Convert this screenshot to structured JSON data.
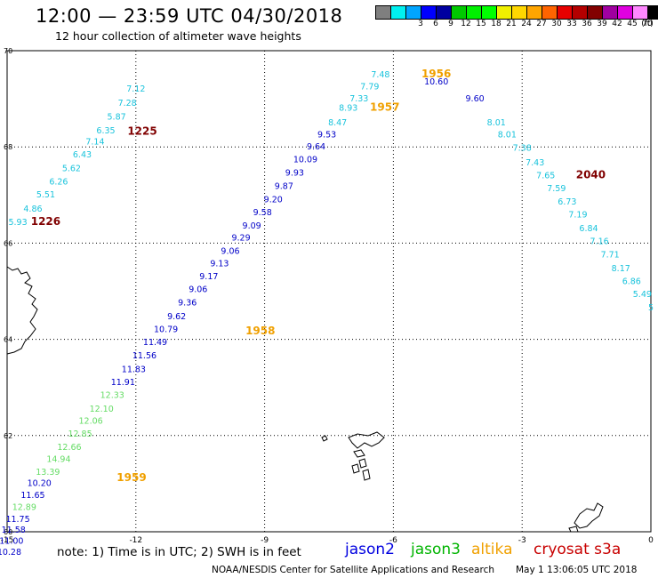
{
  "header": {
    "title": "12:00 — 23:59 UTC 04/30/2018",
    "subtitle": "12 hour collection of altimeter wave heights"
  },
  "colorbar": {
    "unit": "(ft)",
    "colors": [
      "#7f7f7f",
      "#00f0f0",
      "#00a5ff",
      "#0000ff",
      "#0000a0",
      "#00c800",
      "#00f000",
      "#00ff00",
      "#f0f000",
      "#ffd700",
      "#ffa500",
      "#ff6400",
      "#e60000",
      "#b40000",
      "#820000",
      "#a000a0",
      "#e000e0",
      "#ff88ff",
      "#000000"
    ],
    "labels": [
      "3",
      "6",
      "9",
      "12",
      "15",
      "18",
      "21",
      "24",
      "27",
      "30",
      "33",
      "36",
      "39",
      "42",
      "45",
      "70"
    ]
  },
  "map": {
    "lat_ticks": [
      "70",
      "68",
      "66",
      "64",
      "62",
      "60"
    ],
    "lon_ticks": [
      "-15",
      "-12",
      "-9",
      "-6",
      "-3",
      "0"
    ],
    "lat_range": [
      60,
      70
    ],
    "lon_range": [
      -15,
      0
    ]
  },
  "observations": [
    {
      "lon": -12.0,
      "lat": 69.15,
      "text": "7.12",
      "color": "#19c3dc"
    },
    {
      "lon": -12.2,
      "lat": 68.85,
      "text": "7.28",
      "color": "#19c3dc"
    },
    {
      "lon": -12.45,
      "lat": 68.57,
      "text": "5.87",
      "color": "#19c3dc"
    },
    {
      "lon": -12.7,
      "lat": 68.28,
      "text": "6.35",
      "color": "#19c3dc"
    },
    {
      "lon": -12.95,
      "lat": 68.05,
      "text": "7.14",
      "color": "#19c3dc"
    },
    {
      "lon": -13.25,
      "lat": 67.78,
      "text": "6.43",
      "color": "#19c3dc"
    },
    {
      "lon": -13.5,
      "lat": 67.5,
      "text": "5.62",
      "color": "#19c3dc"
    },
    {
      "lon": -13.8,
      "lat": 67.22,
      "text": "6.26",
      "color": "#19c3dc"
    },
    {
      "lon": -14.1,
      "lat": 66.95,
      "text": "5.51",
      "color": "#19c3dc"
    },
    {
      "lon": -14.4,
      "lat": 66.65,
      "text": "4.86",
      "color": "#19c3dc"
    },
    {
      "lon": -14.75,
      "lat": 66.38,
      "text": "5.93",
      "color": "#19c3dc"
    },
    {
      "lon": -11.85,
      "lat": 68.25,
      "text": "1225",
      "color": "#800000",
      "time": true
    },
    {
      "lon": -14.1,
      "lat": 66.38,
      "text": "1226",
      "color": "#800000",
      "time": true
    },
    {
      "lon": -6.3,
      "lat": 69.45,
      "text": "7.48",
      "color": "#19c3dc"
    },
    {
      "lon": -6.55,
      "lat": 69.2,
      "text": "7.79",
      "color": "#19c3dc"
    },
    {
      "lon": -6.8,
      "lat": 68.95,
      "text": "7.33",
      "color": "#19c3dc"
    },
    {
      "lon": -5.0,
      "lat": 69.3,
      "text": "10.60",
      "color": "#0000c8"
    },
    {
      "lon": -4.1,
      "lat": 68.95,
      "text": "9.60",
      "color": "#0000c8"
    },
    {
      "lon": -7.05,
      "lat": 68.75,
      "text": "8.93",
      "color": "#19c3dc"
    },
    {
      "lon": -7.3,
      "lat": 68.45,
      "text": "8.47",
      "color": "#19c3dc"
    },
    {
      "lon": -7.55,
      "lat": 68.2,
      "text": "9.53",
      "color": "#0000c8"
    },
    {
      "lon": -7.8,
      "lat": 67.95,
      "text": "9.64",
      "color": "#0000c8"
    },
    {
      "lon": -8.05,
      "lat": 67.68,
      "text": "10.09",
      "color": "#0000c8"
    },
    {
      "lon": -8.3,
      "lat": 67.4,
      "text": "9.93",
      "color": "#0000c8"
    },
    {
      "lon": -8.55,
      "lat": 67.13,
      "text": "9.87",
      "color": "#0000c8"
    },
    {
      "lon": -8.8,
      "lat": 66.85,
      "text": "9.20",
      "color": "#0000c8"
    },
    {
      "lon": -9.05,
      "lat": 66.58,
      "text": "9.58",
      "color": "#0000c8"
    },
    {
      "lon": -9.3,
      "lat": 66.3,
      "text": "9.09",
      "color": "#0000c8"
    },
    {
      "lon": -9.55,
      "lat": 66.05,
      "text": "9.29",
      "color": "#0000c8"
    },
    {
      "lon": -9.8,
      "lat": 65.78,
      "text": "9.06",
      "color": "#0000c8"
    },
    {
      "lon": -10.05,
      "lat": 65.52,
      "text": "9.13",
      "color": "#0000c8"
    },
    {
      "lon": -10.3,
      "lat": 65.25,
      "text": "9.17",
      "color": "#0000c8"
    },
    {
      "lon": -10.55,
      "lat": 64.98,
      "text": "9.06",
      "color": "#0000c8"
    },
    {
      "lon": -10.8,
      "lat": 64.7,
      "text": "9.36",
      "color": "#0000c8"
    },
    {
      "lon": -11.05,
      "lat": 64.42,
      "text": "9.62",
      "color": "#0000c8"
    },
    {
      "lon": -11.3,
      "lat": 64.15,
      "text": "10.79",
      "color": "#0000c8"
    },
    {
      "lon": -11.55,
      "lat": 63.88,
      "text": "11.49",
      "color": "#0000c8"
    },
    {
      "lon": -11.8,
      "lat": 63.6,
      "text": "11.56",
      "color": "#0000c8"
    },
    {
      "lon": -12.05,
      "lat": 63.32,
      "text": "11.83",
      "color": "#0000c8"
    },
    {
      "lon": -12.3,
      "lat": 63.05,
      "text": "11.91",
      "color": "#0000c8"
    },
    {
      "lon": -12.55,
      "lat": 62.78,
      "text": "12.33",
      "color": "#64dc64"
    },
    {
      "lon": -12.8,
      "lat": 62.5,
      "text": "12.10",
      "color": "#64dc64"
    },
    {
      "lon": -13.05,
      "lat": 62.25,
      "text": "12.06",
      "color": "#64dc64"
    },
    {
      "lon": -13.3,
      "lat": 61.98,
      "text": "12.85",
      "color": "#64dc64"
    },
    {
      "lon": -13.55,
      "lat": 61.7,
      "text": "12.66",
      "color": "#64dc64"
    },
    {
      "lon": -13.8,
      "lat": 61.45,
      "text": "14.94",
      "color": "#64dc64"
    },
    {
      "lon": -14.05,
      "lat": 61.18,
      "text": "13.39",
      "color": "#64dc64"
    },
    {
      "lon": -14.25,
      "lat": 60.95,
      "text": "10.20",
      "color": "#0000c8"
    },
    {
      "lon": -14.4,
      "lat": 60.7,
      "text": "11.65",
      "color": "#0000c8"
    },
    {
      "lon": -14.6,
      "lat": 60.45,
      "text": "12.89",
      "color": "#64dc64"
    },
    {
      "lon": -14.75,
      "lat": 60.2,
      "text": "11.75",
      "color": "#0000c8"
    },
    {
      "lon": -14.85,
      "lat": 59.98,
      "text": "11.58",
      "color": "#0000c8"
    },
    {
      "lon": -14.9,
      "lat": 59.75,
      "text": "11.00",
      "color": "#0000c8"
    },
    {
      "lon": -14.95,
      "lat": 59.52,
      "text": "10.28",
      "color": "#0000c8"
    },
    {
      "lon": -9.1,
      "lat": 64.1,
      "text": "1958",
      "color": "#f0a000",
      "time": true
    },
    {
      "lon": -12.1,
      "lat": 61.05,
      "text": "1959",
      "color": "#f0a000",
      "time": true
    },
    {
      "lon": -6.2,
      "lat": 68.75,
      "text": "1957",
      "color": "#f0a000",
      "time": true
    },
    {
      "lon": -5.0,
      "lat": 69.45,
      "text": "1956",
      "color": "#f0a000",
      "time": true
    },
    {
      "lon": -3.6,
      "lat": 68.45,
      "text": "8.01",
      "color": "#19c3dc"
    },
    {
      "lon": -3.35,
      "lat": 68.2,
      "text": "8.01",
      "color": "#19c3dc"
    },
    {
      "lon": -3.0,
      "lat": 67.92,
      "text": "7.38",
      "color": "#19c3dc"
    },
    {
      "lon": -2.7,
      "lat": 67.62,
      "text": "7.43",
      "color": "#19c3dc"
    },
    {
      "lon": -2.45,
      "lat": 67.35,
      "text": "7.65",
      "color": "#19c3dc"
    },
    {
      "lon": -2.2,
      "lat": 67.08,
      "text": "7.59",
      "color": "#19c3dc"
    },
    {
      "lon": -1.95,
      "lat": 66.8,
      "text": "6.73",
      "color": "#19c3dc"
    },
    {
      "lon": -1.7,
      "lat": 66.53,
      "text": "7.19",
      "color": "#19c3dc"
    },
    {
      "lon": -1.45,
      "lat": 66.25,
      "text": "6.84",
      "color": "#19c3dc"
    },
    {
      "lon": -1.2,
      "lat": 65.98,
      "text": "7.16",
      "color": "#19c3dc"
    },
    {
      "lon": -0.95,
      "lat": 65.7,
      "text": "7.71",
      "color": "#19c3dc"
    },
    {
      "lon": -0.7,
      "lat": 65.42,
      "text": "8.17",
      "color": "#19c3dc"
    },
    {
      "lon": -0.45,
      "lat": 65.15,
      "text": "6.86",
      "color": "#19c3dc"
    },
    {
      "lon": -0.2,
      "lat": 64.88,
      "text": "5.49",
      "color": "#19c3dc"
    },
    {
      "lon": 0.0,
      "lat": 64.6,
      "text": "5",
      "color": "#19c3dc"
    },
    {
      "lon": -1.4,
      "lat": 67.35,
      "text": "2040",
      "color": "#800000",
      "time": true
    }
  ],
  "footer": {
    "note": "note:  1) Time is in UTC;  2) SWH is in feet",
    "legend": [
      {
        "name": "jason2",
        "color": "#0000e0"
      },
      {
        "name": "jason3",
        "color": "#00b400"
      },
      {
        "name": "altika",
        "color": "#f0a000"
      },
      {
        "name": "cryosat s3a",
        "color": "#c80000"
      }
    ],
    "credit": "NOAA/NESDIS Center for Satellite Applications and Research",
    "timestamp": "May  1 13:06:05 UTC 2018"
  }
}
